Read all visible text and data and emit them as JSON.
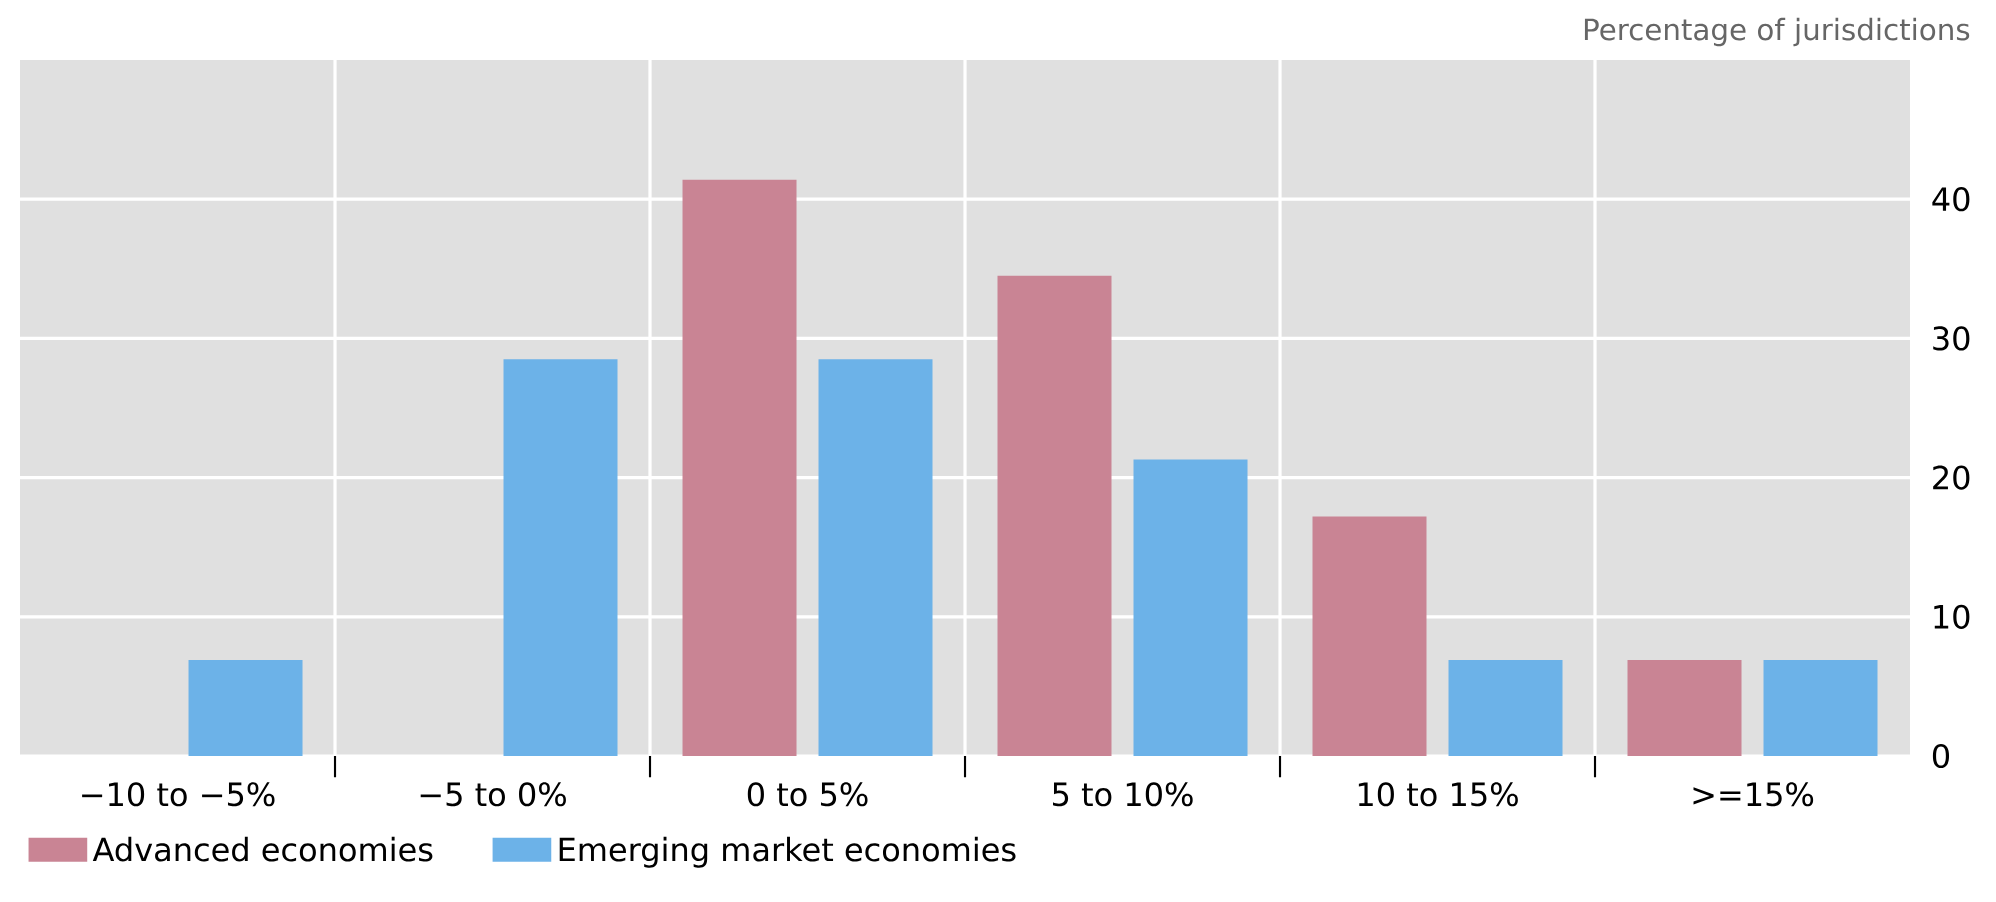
{
  "chart_data": {
    "type": "bar",
    "title": "Percentage of jurisdictions",
    "categories": [
      "−10 to −5%",
      "−5 to 0%",
      "0 to 5%",
      "5 to 10%",
      "10 to 15%",
      ">=15%"
    ],
    "series": [
      {
        "name": "Advanced economies",
        "color": "#c98494",
        "values": [
          null,
          null,
          41.4,
          34.5,
          17.2,
          6.9
        ]
      },
      {
        "name": "Emerging market economies",
        "color": "#6cb2e8",
        "values": [
          6.9,
          28.5,
          28.5,
          21.3,
          6.9,
          6.9
        ]
      }
    ],
    "ylim": [
      0,
      50
    ],
    "yticks": [
      0,
      10,
      20,
      30,
      40
    ],
    "grid": true,
    "legend": "bottom"
  }
}
